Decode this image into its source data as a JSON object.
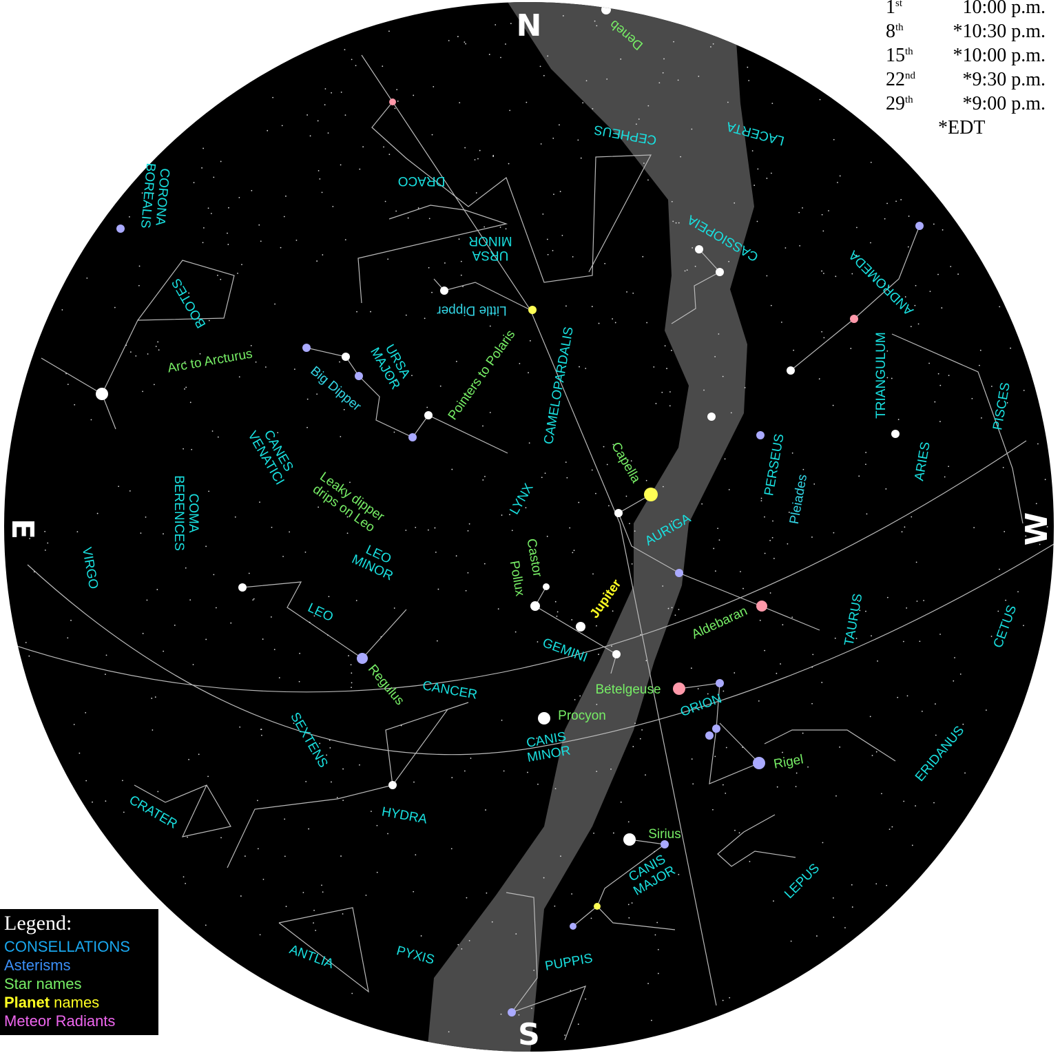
{
  "directions": {
    "north": "N",
    "east": "E",
    "south": "S",
    "west": "W"
  },
  "time_table": [
    {
      "day": "1",
      "suffix": "st",
      "time": "10:00 p.m."
    },
    {
      "day": "8",
      "suffix": "th",
      "time": "*10:30 p.m."
    },
    {
      "day": "15",
      "suffix": "th",
      "time": "*10:00 p.m."
    },
    {
      "day": "22",
      "suffix": "nd",
      "time": "*9:30 p.m."
    },
    {
      "day": "29",
      "suffix": "th",
      "time": "*9:00 p.m."
    }
  ],
  "time_note": "*EDT",
  "legend": {
    "title": "Legend:",
    "constellations": "CONSELLATIONS",
    "asterisms": "Asterisms",
    "star_names": "Star names",
    "planet_word": "Planet",
    "planet_rest": " names",
    "meteor": "Meteor Radiants"
  },
  "labels": {
    "constellations": [
      "DRACO",
      "CEPHEUS",
      "LACERTA",
      "CASSIOPEIA",
      "ANDROMEDA",
      [
        "CORONA",
        "BOREALIS"
      ],
      [
        "URSA",
        "MINOR"
      ],
      "BOOTES",
      [
        "URSA",
        "MAJOR"
      ],
      "CAMELOPARDALIS",
      "TRIANGULUM",
      "PISCES",
      [
        "CANES",
        "VENATICI"
      ],
      [
        "COMA",
        "BERENICES"
      ],
      "LYNX",
      "PERSEUS",
      "ARIES",
      "AURIGA",
      "VIRGO",
      [
        "LEO",
        "MINOR"
      ],
      "LEO",
      "TAURUS",
      "CETUS",
      "GEMINI",
      "CANCER",
      "ORION",
      "SEXTENS",
      [
        "CANIS",
        "MINOR"
      ],
      "ERIDANUS",
      "CRATER",
      "HYDRA",
      [
        "CANIS",
        "MAJOR"
      ],
      "LEPUS",
      "ANTLIA",
      "PYXIS",
      "PUPPIS"
    ],
    "asterisms": [
      "Little Dipper",
      "Big Dipper",
      "Pleiades"
    ],
    "stars": [
      "Deneb",
      "Arc to Arcturus",
      "Pointers to Polaris",
      [
        "Leaky dipper",
        "drips on Leo"
      ],
      "Capella",
      "Castor",
      "Pollux",
      "Aldebaran",
      "Regulus",
      "Betelgeuse",
      "Procyon",
      "Rigel",
      "Sirius"
    ],
    "planets": [
      "Jupiter"
    ]
  }
}
